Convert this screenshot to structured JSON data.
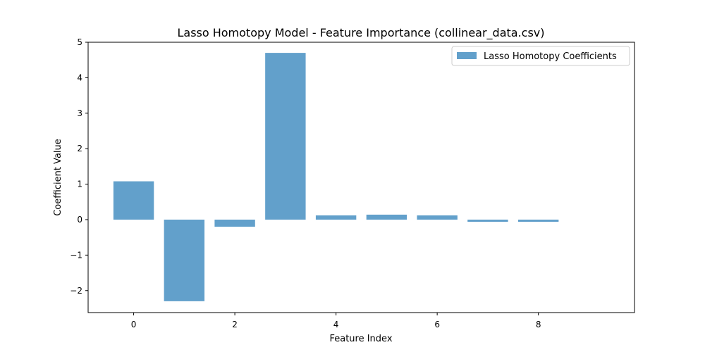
{
  "chart_data": {
    "type": "bar",
    "title": "Lasso Homotopy Model - Feature Importance (collinear_data.csv)",
    "xlabel": "Feature Index",
    "ylabel": "Coefficient Value",
    "x": [
      0,
      1,
      2,
      3,
      4,
      5,
      6,
      7,
      8
    ],
    "series": [
      {
        "name": "Lasso Homotopy Coefficients",
        "values": [
          1.08,
          -2.3,
          -0.2,
          4.7,
          0.12,
          0.14,
          0.12,
          -0.06,
          -0.06
        ],
        "color": "#62a0cb"
      }
    ],
    "xlim": [
      -0.9,
      9.9
    ],
    "ylim": [
      -2.62,
      5.0
    ],
    "xticks": [
      0,
      2,
      4,
      6,
      8
    ],
    "xtick_labels": [
      "0",
      "2",
      "4",
      "6",
      "8"
    ],
    "yticks": [
      -2,
      -1,
      0,
      1,
      2,
      3,
      4,
      5
    ],
    "ytick_labels": [
      "−2",
      "−1",
      "0",
      "1",
      "2",
      "3",
      "4",
      "5"
    ],
    "grid": false,
    "legend_position": "top-right"
  }
}
